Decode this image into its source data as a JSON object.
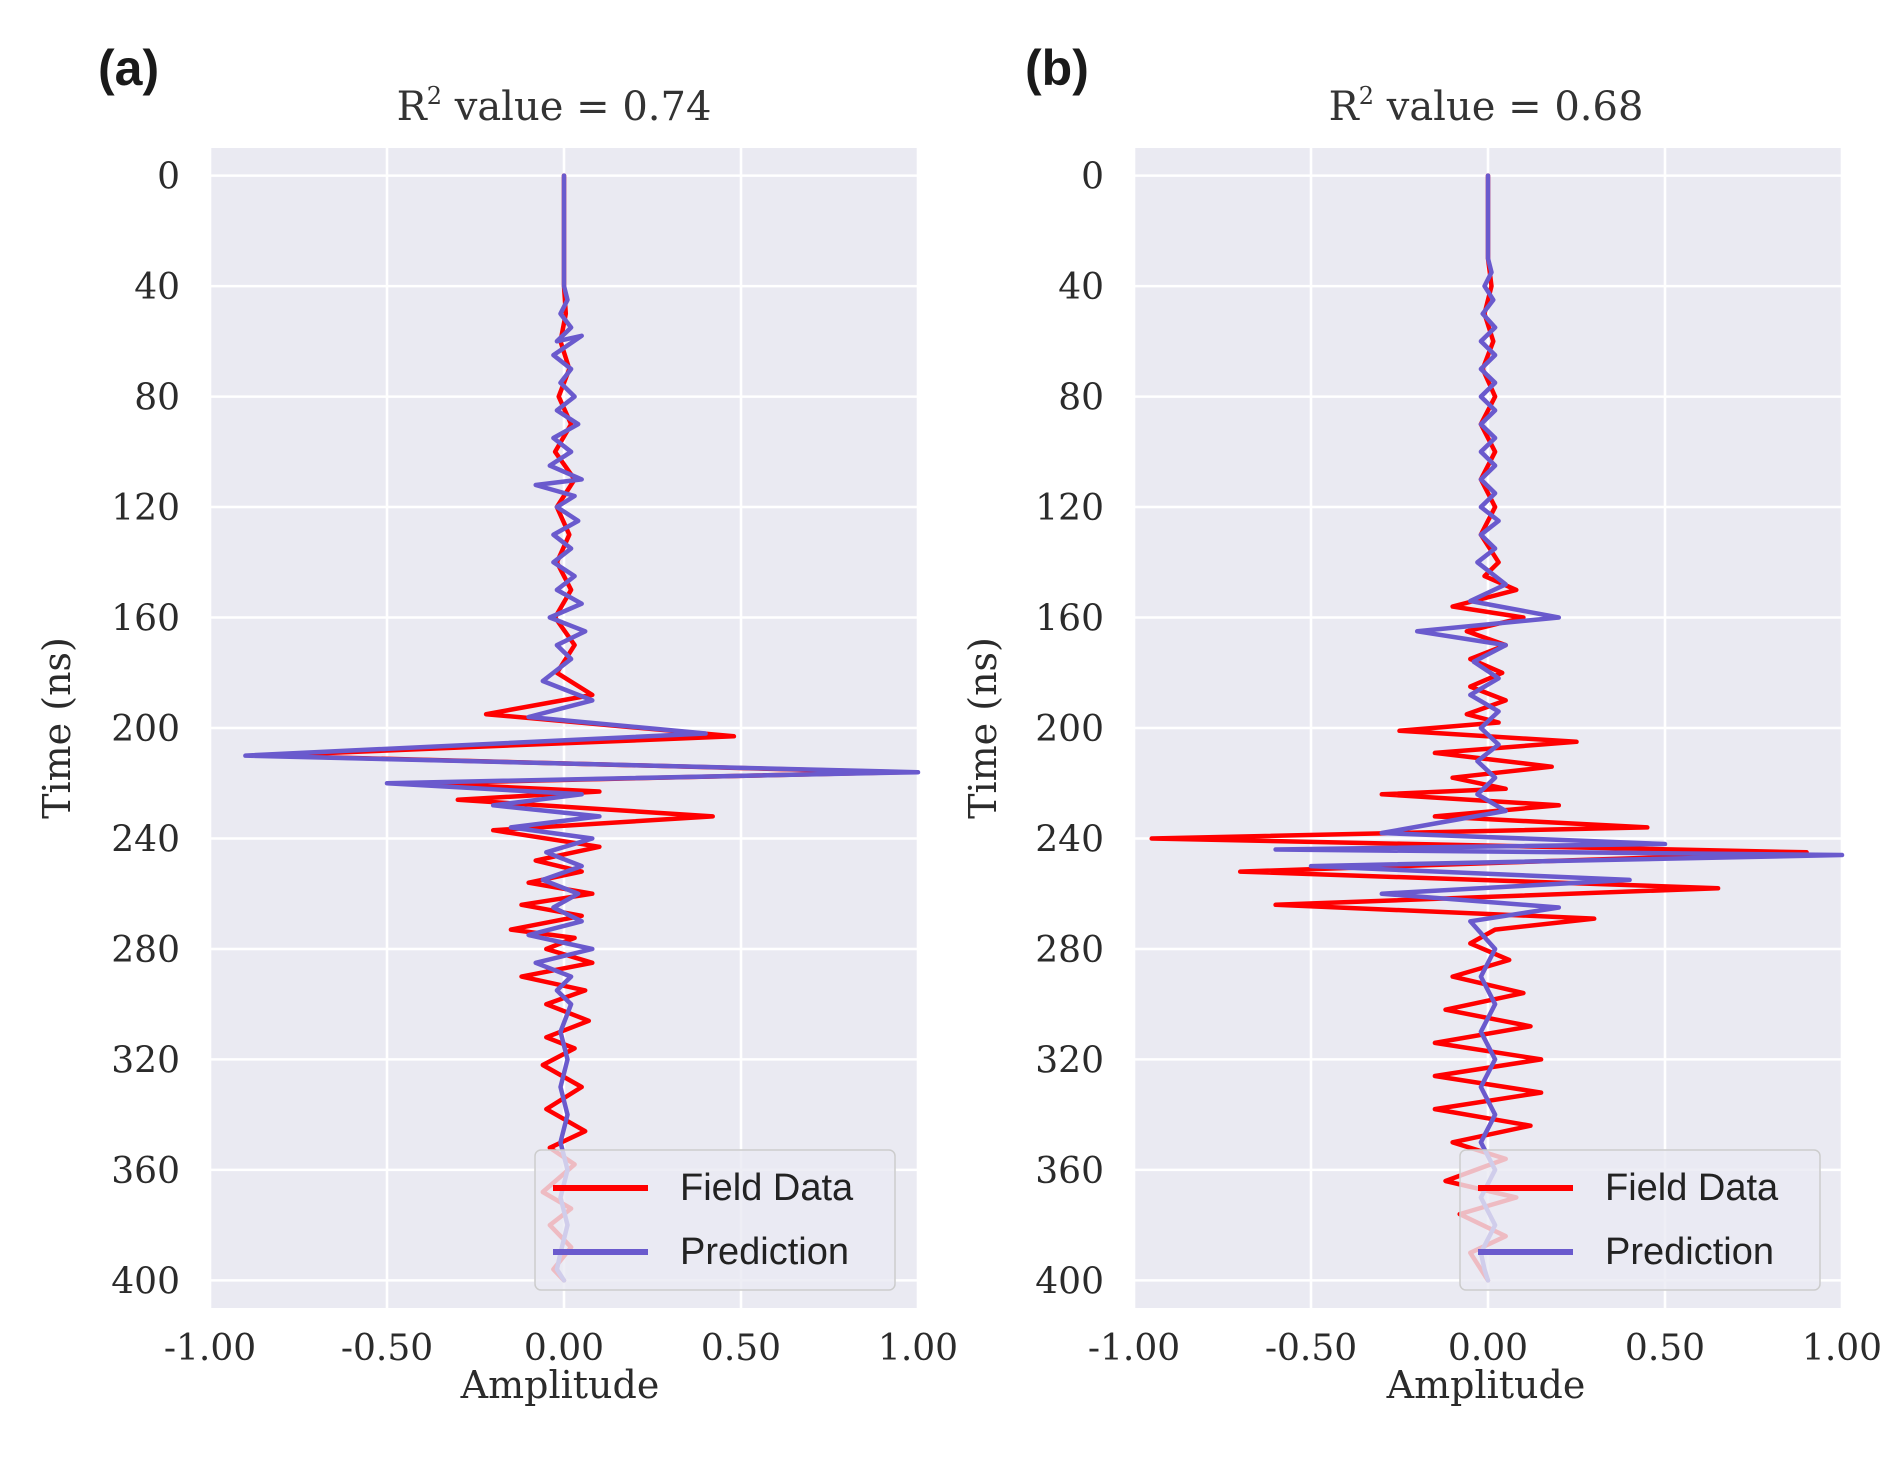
{
  "chart_data": [
    {
      "panel": "(a)",
      "type": "line",
      "title_prefix": "R",
      "title_sup": "2",
      "title_suffix": " value = 0.74",
      "xlabel": "Amplitude",
      "ylabel": "Time (ns)",
      "xlim": [
        -1.0,
        1.0
      ],
      "ylim": [
        410,
        -10
      ],
      "xticks": [
        "-1.00",
        "-0.50",
        "0.00",
        "0.50",
        "1.00"
      ],
      "yticks": [
        "0",
        "40",
        "80",
        "120",
        "160",
        "200",
        "240",
        "280",
        "320",
        "360",
        "400"
      ],
      "legend": {
        "position": "bottom-right",
        "entries": [
          "Field Data",
          "Prediction"
        ]
      },
      "series": [
        {
          "name": "Field Data",
          "color": "#ff0000",
          "points": [
            [
              0,
              0
            ],
            [
              0,
              40
            ],
            [
              0.005,
              50
            ],
            [
              -0.01,
              60
            ],
            [
              0.015,
              70
            ],
            [
              -0.015,
              80
            ],
            [
              0.02,
              90
            ],
            [
              -0.025,
              100
            ],
            [
              0.03,
              110
            ],
            [
              -0.02,
              120
            ],
            [
              0.015,
              130
            ],
            [
              -0.02,
              140
            ],
            [
              0.02,
              150
            ],
            [
              -0.025,
              160
            ],
            [
              0.03,
              170
            ],
            [
              -0.02,
              180
            ],
            [
              0.08,
              188
            ],
            [
              -0.22,
              195
            ],
            [
              0.48,
              203
            ],
            [
              -0.85,
              210
            ],
            [
              0.95,
              216
            ],
            [
              -0.4,
              220
            ],
            [
              0.1,
              223
            ],
            [
              -0.3,
              226
            ],
            [
              0.42,
              232
            ],
            [
              -0.2,
              237
            ],
            [
              0.1,
              243
            ],
            [
              -0.08,
              248
            ],
            [
              0.05,
              252
            ],
            [
              -0.1,
              256
            ],
            [
              0.08,
              260
            ],
            [
              -0.12,
              264
            ],
            [
              0.05,
              268
            ],
            [
              -0.15,
              273
            ],
            [
              0.03,
              276
            ],
            [
              -0.05,
              280
            ],
            [
              0.08,
              285
            ],
            [
              -0.12,
              290
            ],
            [
              0.06,
              295
            ],
            [
              -0.05,
              300
            ],
            [
              0.07,
              306
            ],
            [
              -0.05,
              312
            ],
            [
              0.03,
              316
            ],
            [
              -0.06,
              322
            ],
            [
              0.05,
              330
            ],
            [
              -0.05,
              338
            ],
            [
              0.06,
              346
            ],
            [
              -0.04,
              352
            ],
            [
              0.03,
              358
            ],
            [
              -0.06,
              368
            ],
            [
              0.02,
              374
            ],
            [
              -0.04,
              380
            ],
            [
              0.02,
              388
            ],
            [
              -0.03,
              396
            ],
            [
              0,
              400
            ]
          ]
        },
        {
          "name": "Prediction",
          "color": "#6a5acd",
          "points": [
            [
              0,
              0
            ],
            [
              0,
              40
            ],
            [
              0.01,
              45
            ],
            [
              -0.01,
              50
            ],
            [
              0.02,
              55
            ],
            [
              -0.02,
              60
            ],
            [
              0.05,
              58
            ],
            [
              -0.03,
              65
            ],
            [
              0.02,
              70
            ],
            [
              -0.01,
              75
            ],
            [
              0.03,
              80
            ],
            [
              -0.02,
              85
            ],
            [
              0.04,
              90
            ],
            [
              -0.03,
              95
            ],
            [
              0.02,
              100
            ],
            [
              -0.04,
              105
            ],
            [
              0.05,
              110
            ],
            [
              -0.08,
              112
            ],
            [
              0.03,
              116
            ],
            [
              -0.02,
              120
            ],
            [
              0.04,
              125
            ],
            [
              -0.03,
              130
            ],
            [
              0.02,
              135
            ],
            [
              -0.03,
              140
            ],
            [
              0.03,
              145
            ],
            [
              -0.02,
              150
            ],
            [
              0.05,
              155
            ],
            [
              -0.04,
              160
            ],
            [
              0.06,
              165
            ],
            [
              -0.02,
              170
            ],
            [
              0.02,
              175
            ],
            [
              -0.06,
              183
            ],
            [
              0.08,
              190
            ],
            [
              -0.1,
              196
            ],
            [
              0.4,
              202
            ],
            [
              -0.9,
              210
            ],
            [
              1.0,
              216
            ],
            [
              -0.5,
              220
            ],
            [
              0.05,
              224
            ],
            [
              -0.2,
              228
            ],
            [
              0.1,
              232
            ],
            [
              -0.15,
              236
            ],
            [
              0.08,
              240
            ],
            [
              -0.05,
              245
            ],
            [
              0.05,
              250
            ],
            [
              -0.06,
              255
            ],
            [
              0.04,
              260
            ],
            [
              -0.03,
              265
            ],
            [
              0.05,
              270
            ],
            [
              -0.1,
              275
            ],
            [
              0.08,
              280
            ],
            [
              -0.08,
              285
            ],
            [
              0.02,
              290
            ],
            [
              -0.02,
              295
            ],
            [
              0.02,
              300
            ],
            [
              -0.01,
              310
            ],
            [
              0.01,
              320
            ],
            [
              -0.01,
              330
            ],
            [
              0.01,
              340
            ],
            [
              -0.01,
              350
            ],
            [
              0.01,
              360
            ],
            [
              -0.01,
              370
            ],
            [
              0.01,
              380
            ],
            [
              -0.01,
              390
            ],
            [
              -0.02,
              396
            ],
            [
              0,
              400
            ]
          ]
        }
      ]
    },
    {
      "panel": "(b)",
      "type": "line",
      "title_prefix": "R",
      "title_sup": "2",
      "title_suffix": " value = 0.68",
      "xlabel": "Amplitude",
      "ylabel": "Time (ns)",
      "xlim": [
        -1.0,
        1.0
      ],
      "ylim": [
        410,
        -10
      ],
      "xticks": [
        "-1.00",
        "-0.50",
        "0.00",
        "0.50",
        "1.00"
      ],
      "yticks": [
        "0",
        "40",
        "80",
        "120",
        "160",
        "200",
        "240",
        "280",
        "320",
        "360",
        "400"
      ],
      "legend": {
        "position": "bottom-right",
        "entries": [
          "Field Data",
          "Prediction"
        ]
      },
      "series": [
        {
          "name": "Field Data",
          "color": "#ff0000",
          "points": [
            [
              0,
              0
            ],
            [
              0,
              30
            ],
            [
              0.01,
              40
            ],
            [
              -0.01,
              50
            ],
            [
              0.015,
              60
            ],
            [
              -0.015,
              70
            ],
            [
              0.02,
              80
            ],
            [
              -0.02,
              90
            ],
            [
              0.02,
              100
            ],
            [
              -0.02,
              110
            ],
            [
              0.02,
              120
            ],
            [
              -0.02,
              130
            ],
            [
              0.03,
              140
            ],
            [
              -0.01,
              145
            ],
            [
              0.08,
              150
            ],
            [
              -0.1,
              156
            ],
            [
              0.1,
              160
            ],
            [
              -0.06,
              165
            ],
            [
              0.05,
              170
            ],
            [
              -0.05,
              175
            ],
            [
              0.04,
              180
            ],
            [
              -0.05,
              185
            ],
            [
              0.05,
              190
            ],
            [
              -0.06,
              195
            ],
            [
              0.03,
              198
            ],
            [
              -0.25,
              201
            ],
            [
              0.25,
              205
            ],
            [
              -0.15,
              209
            ],
            [
              0.18,
              214
            ],
            [
              -0.1,
              218
            ],
            [
              0.05,
              222
            ],
            [
              -0.3,
              224
            ],
            [
              0.2,
              228
            ],
            [
              -0.15,
              232
            ],
            [
              0.45,
              236
            ],
            [
              -0.95,
              240
            ],
            [
              0.9,
              245
            ],
            [
              -0.7,
              252
            ],
            [
              0.65,
              258
            ],
            [
              -0.6,
              264
            ],
            [
              0.3,
              269
            ],
            [
              0.02,
              273
            ],
            [
              -0.05,
              278
            ],
            [
              0.06,
              284
            ],
            [
              -0.1,
              290
            ],
            [
              0.1,
              296
            ],
            [
              -0.12,
              302
            ],
            [
              0.12,
              308
            ],
            [
              -0.15,
              314
            ],
            [
              0.15,
              320
            ],
            [
              -0.15,
              326
            ],
            [
              0.15,
              332
            ],
            [
              -0.15,
              338
            ],
            [
              0.12,
              344
            ],
            [
              -0.1,
              350
            ],
            [
              0.05,
              356
            ],
            [
              -0.12,
              364
            ],
            [
              0.08,
              370
            ],
            [
              -0.08,
              376
            ],
            [
              0.05,
              384
            ],
            [
              -0.05,
              390
            ],
            [
              0,
              400
            ]
          ]
        },
        {
          "name": "Prediction",
          "color": "#6a5acd",
          "points": [
            [
              0,
              0
            ],
            [
              0,
              30
            ],
            [
              0.01,
              35
            ],
            [
              -0.01,
              40
            ],
            [
              0.015,
              45
            ],
            [
              -0.015,
              50
            ],
            [
              0.02,
              55
            ],
            [
              -0.02,
              60
            ],
            [
              0.02,
              65
            ],
            [
              -0.02,
              70
            ],
            [
              0.02,
              75
            ],
            [
              -0.02,
              80
            ],
            [
              0.02,
              85
            ],
            [
              -0.02,
              90
            ],
            [
              0.02,
              95
            ],
            [
              -0.02,
              100
            ],
            [
              0.02,
              105
            ],
            [
              -0.02,
              110
            ],
            [
              0.02,
              115
            ],
            [
              -0.02,
              120
            ],
            [
              0.03,
              125
            ],
            [
              -0.02,
              130
            ],
            [
              0.02,
              135
            ],
            [
              -0.03,
              140
            ],
            [
              0.05,
              148
            ],
            [
              -0.05,
              154
            ],
            [
              0.2,
              160
            ],
            [
              -0.2,
              165
            ],
            [
              0.05,
              170
            ],
            [
              -0.04,
              176
            ],
            [
              0.03,
              182
            ],
            [
              -0.05,
              188
            ],
            [
              0.03,
              194
            ],
            [
              -0.02,
              200
            ],
            [
              0.03,
              206
            ],
            [
              -0.03,
              212
            ],
            [
              0.02,
              218
            ],
            [
              -0.03,
              224
            ],
            [
              0.05,
              230
            ],
            [
              -0.3,
              238
            ],
            [
              0.5,
              242
            ],
            [
              -0.6,
              244
            ],
            [
              1.0,
              246
            ],
            [
              -0.5,
              250
            ],
            [
              0.4,
              255
            ],
            [
              -0.3,
              260
            ],
            [
              0.2,
              265
            ],
            [
              -0.05,
              270
            ],
            [
              0.02,
              280
            ],
            [
              -0.02,
              290
            ],
            [
              0.02,
              300
            ],
            [
              -0.02,
              310
            ],
            [
              0.02,
              320
            ],
            [
              -0.02,
              330
            ],
            [
              0.02,
              340
            ],
            [
              -0.02,
              350
            ],
            [
              0.02,
              360
            ],
            [
              -0.02,
              370
            ],
            [
              0.02,
              380
            ],
            [
              -0.02,
              390
            ],
            [
              -0.01,
              396
            ],
            [
              0,
              400
            ]
          ]
        }
      ]
    }
  ]
}
